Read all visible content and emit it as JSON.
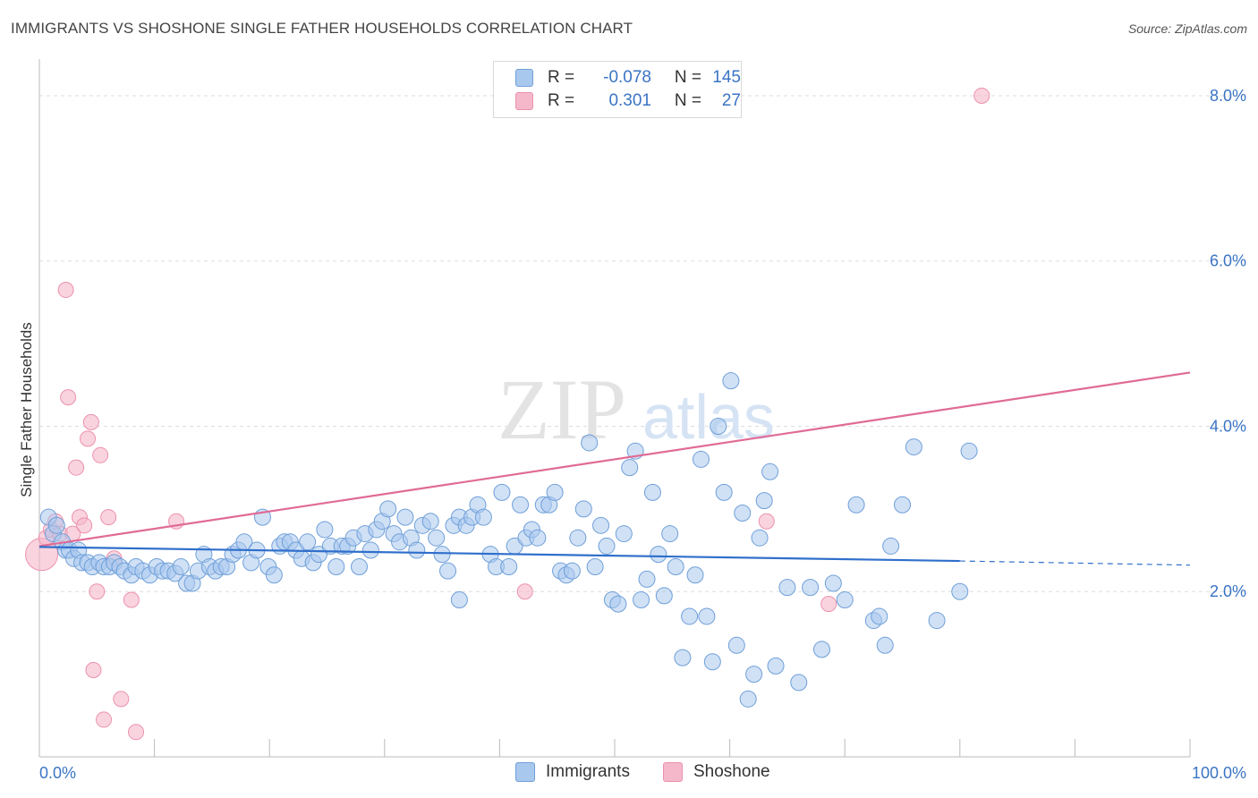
{
  "title": "IMMIGRANTS VS SHOSHONE SINGLE FATHER HOUSEHOLDS CORRELATION CHART",
  "source": "Source: ZipAtlas.com",
  "watermark": {
    "zip": "ZIP",
    "atlas": "atlas"
  },
  "colors": {
    "immigrants_fill": "#a9c8ee",
    "immigrants_stroke": "#6f9fd8",
    "immigrants_line": "#2f6fcb",
    "shoshone_fill": "#f5b8ca",
    "shoshone_stroke": "#ec91ad",
    "shoshone_line": "#e06b96",
    "axis_label": "#3a74c4",
    "grid": "#dddddd"
  },
  "stats": {
    "immigrants": {
      "r_label": "R =",
      "r_value": "-0.078",
      "n_label": "N =",
      "n_value": "145"
    },
    "shoshone": {
      "r_label": "R =",
      "r_value": "0.301",
      "n_label": "N =",
      "n_value": "27"
    }
  },
  "legend": {
    "immigrants": "Immigrants",
    "shoshone": "Shoshone"
  },
  "chart_data": {
    "type": "scatter",
    "title": "IMMIGRANTS VS SHOSHONE SINGLE FATHER HOUSEHOLDS CORRELATION CHART",
    "xlabel": "",
    "ylabel": "Single Father Households",
    "xlim": [
      0,
      100
    ],
    "ylim": [
      0,
      8.4
    ],
    "x_tick_labels": [
      "0.0%",
      "100.0%"
    ],
    "y_ticks": [
      2.0,
      4.0,
      6.0,
      8.0
    ],
    "y_tick_labels": [
      "2.0%",
      "4.0%",
      "6.0%",
      "8.0%"
    ],
    "grid": true,
    "legend_position": "bottom",
    "series": [
      {
        "name": "Immigrants",
        "trend": {
          "x": [
            0,
            80
          ],
          "y": [
            2.54,
            2.37
          ],
          "extension": {
            "x": [
              80,
              100
            ],
            "y": [
              2.37,
              2.32
            ]
          }
        },
        "points": [
          [
            0.8,
            2.9
          ],
          [
            1.2,
            2.7
          ],
          [
            1.5,
            2.8
          ],
          [
            2.0,
            2.6
          ],
          [
            2.3,
            2.5
          ],
          [
            2.6,
            2.5
          ],
          [
            3.0,
            2.4
          ],
          [
            3.4,
            2.5
          ],
          [
            3.7,
            2.35
          ],
          [
            4.2,
            2.35
          ],
          [
            4.6,
            2.3
          ],
          [
            5.2,
            2.35
          ],
          [
            5.6,
            2.3
          ],
          [
            6.1,
            2.3
          ],
          [
            6.5,
            2.35
          ],
          [
            7.0,
            2.3
          ],
          [
            7.4,
            2.25
          ],
          [
            8.0,
            2.2
          ],
          [
            8.4,
            2.3
          ],
          [
            9.0,
            2.25
          ],
          [
            9.6,
            2.2
          ],
          [
            10.2,
            2.3
          ],
          [
            10.7,
            2.25
          ],
          [
            11.2,
            2.25
          ],
          [
            11.8,
            2.22
          ],
          [
            12.3,
            2.3
          ],
          [
            12.8,
            2.1
          ],
          [
            13.3,
            2.1
          ],
          [
            13.8,
            2.25
          ],
          [
            14.3,
            2.45
          ],
          [
            14.8,
            2.3
          ],
          [
            15.3,
            2.25
          ],
          [
            15.8,
            2.3
          ],
          [
            16.3,
            2.3
          ],
          [
            16.8,
            2.45
          ],
          [
            17.3,
            2.5
          ],
          [
            17.8,
            2.6
          ],
          [
            18.4,
            2.35
          ],
          [
            18.9,
            2.5
          ],
          [
            19.4,
            2.9
          ],
          [
            19.9,
            2.3
          ],
          [
            20.4,
            2.2
          ],
          [
            20.9,
            2.55
          ],
          [
            21.3,
            2.6
          ],
          [
            21.8,
            2.6
          ],
          [
            22.3,
            2.5
          ],
          [
            22.8,
            2.4
          ],
          [
            23.3,
            2.6
          ],
          [
            23.8,
            2.35
          ],
          [
            24.3,
            2.45
          ],
          [
            24.8,
            2.75
          ],
          [
            25.3,
            2.55
          ],
          [
            25.8,
            2.3
          ],
          [
            26.3,
            2.55
          ],
          [
            26.8,
            2.55
          ],
          [
            27.3,
            2.65
          ],
          [
            27.8,
            2.3
          ],
          [
            28.3,
            2.7
          ],
          [
            28.8,
            2.5
          ],
          [
            29.3,
            2.75
          ],
          [
            29.8,
            2.85
          ],
          [
            30.3,
            3.0
          ],
          [
            30.8,
            2.7
          ],
          [
            31.3,
            2.6
          ],
          [
            31.8,
            2.9
          ],
          [
            32.3,
            2.65
          ],
          [
            32.8,
            2.5
          ],
          [
            33.3,
            2.8
          ],
          [
            34.0,
            2.85
          ],
          [
            34.5,
            2.65
          ],
          [
            35.0,
            2.45
          ],
          [
            35.5,
            2.25
          ],
          [
            36.0,
            2.8
          ],
          [
            36.5,
            2.9
          ],
          [
            37.1,
            2.8
          ],
          [
            37.6,
            2.9
          ],
          [
            38.1,
            3.05
          ],
          [
            38.6,
            2.9
          ],
          [
            39.2,
            2.45
          ],
          [
            39.7,
            2.3
          ],
          [
            40.2,
            3.2
          ],
          [
            40.8,
            2.3
          ],
          [
            41.3,
            2.55
          ],
          [
            41.8,
            3.05
          ],
          [
            42.3,
            2.65
          ],
          [
            42.8,
            2.75
          ],
          [
            43.3,
            2.65
          ],
          [
            43.8,
            3.05
          ],
          [
            44.3,
            3.05
          ],
          [
            44.8,
            3.2
          ],
          [
            45.3,
            2.25
          ],
          [
            45.8,
            2.2
          ],
          [
            46.3,
            2.25
          ],
          [
            46.8,
            2.65
          ],
          [
            47.3,
            3.0
          ],
          [
            47.8,
            3.8
          ],
          [
            48.3,
            2.3
          ],
          [
            48.8,
            2.8
          ],
          [
            49.3,
            2.55
          ],
          [
            49.8,
            1.9
          ],
          [
            50.3,
            1.85
          ],
          [
            50.8,
            2.7
          ],
          [
            51.3,
            3.5
          ],
          [
            51.8,
            3.7
          ],
          [
            52.3,
            1.9
          ],
          [
            52.8,
            2.15
          ],
          [
            53.3,
            3.2
          ],
          [
            53.8,
            2.45
          ],
          [
            54.3,
            1.95
          ],
          [
            54.8,
            2.7
          ],
          [
            55.3,
            2.3
          ],
          [
            55.9,
            1.2
          ],
          [
            56.5,
            1.7
          ],
          [
            57.0,
            2.2
          ],
          [
            57.5,
            3.6
          ],
          [
            58.0,
            1.7
          ],
          [
            58.5,
            1.15
          ],
          [
            59.0,
            4.0
          ],
          [
            59.5,
            3.2
          ],
          [
            60.1,
            4.55
          ],
          [
            60.6,
            1.35
          ],
          [
            61.1,
            2.95
          ],
          [
            61.6,
            0.7
          ],
          [
            62.1,
            1.0
          ],
          [
            62.6,
            2.65
          ],
          [
            63.0,
            3.1
          ],
          [
            63.5,
            3.45
          ],
          [
            64.0,
            1.1
          ],
          [
            65.0,
            2.05
          ],
          [
            66.0,
            0.9
          ],
          [
            67.0,
            2.05
          ],
          [
            68.0,
            1.3
          ],
          [
            69.0,
            2.1
          ],
          [
            70.0,
            1.9
          ],
          [
            71.0,
            3.05
          ],
          [
            72.5,
            1.65
          ],
          [
            73.0,
            1.7
          ],
          [
            73.5,
            1.35
          ],
          [
            74.0,
            2.55
          ],
          [
            75.0,
            3.05
          ],
          [
            76.0,
            3.75
          ],
          [
            78.0,
            1.65
          ],
          [
            80.0,
            2.0
          ],
          [
            80.8,
            3.7
          ],
          [
            36.5,
            1.9
          ]
        ]
      },
      {
        "name": "Shoshone",
        "trend": {
          "x": [
            0,
            100
          ],
          "y": [
            2.55,
            4.65
          ]
        },
        "points": [
          [
            0.2,
            2.45
          ],
          [
            0.6,
            2.65
          ],
          [
            1.0,
            2.75
          ],
          [
            1.4,
            2.85
          ],
          [
            1.8,
            2.7
          ],
          [
            2.3,
            5.65
          ],
          [
            2.5,
            4.35
          ],
          [
            2.9,
            2.7
          ],
          [
            3.2,
            3.5
          ],
          [
            3.5,
            2.9
          ],
          [
            3.9,
            2.8
          ],
          [
            4.2,
            3.85
          ],
          [
            4.5,
            4.05
          ],
          [
            4.7,
            1.05
          ],
          [
            5.0,
            2.0
          ],
          [
            5.3,
            3.65
          ],
          [
            5.6,
            0.45
          ],
          [
            6.0,
            2.9
          ],
          [
            6.5,
            2.4
          ],
          [
            7.1,
            0.7
          ],
          [
            8.0,
            1.9
          ],
          [
            8.4,
            0.3
          ],
          [
            11.9,
            2.85
          ],
          [
            42.2,
            2.0
          ],
          [
            63.2,
            2.85
          ],
          [
            68.6,
            1.85
          ],
          [
            81.9,
            8.0
          ]
        ]
      }
    ]
  }
}
